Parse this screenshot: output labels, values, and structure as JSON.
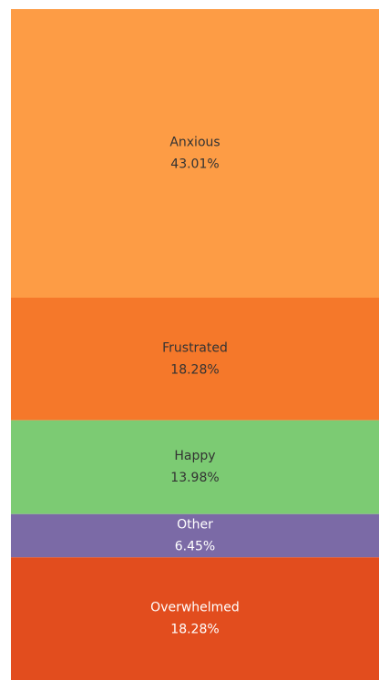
{
  "chart_data": {
    "type": "stacked_bar",
    "categories": [
      "Anxious",
      "Frustrated",
      "Happy",
      "Other",
      "Overwhelmed"
    ],
    "values": [
      43.01,
      18.28,
      13.98,
      6.45,
      18.28
    ],
    "value_labels": [
      "43.01%",
      "18.28%",
      "13.98%",
      "6.45%",
      "18.28%"
    ],
    "colors": [
      "#fd9c45",
      "#f5782a",
      "#7ccb73",
      "#7b6aa6",
      "#e24d1e"
    ],
    "ylim": [
      0,
      100
    ]
  }
}
